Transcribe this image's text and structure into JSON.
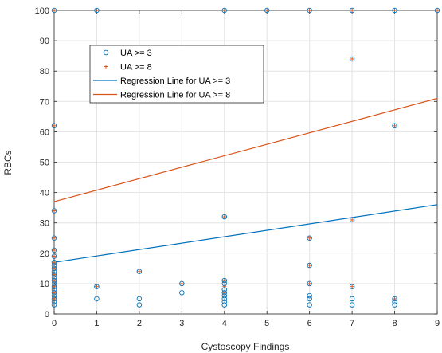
{
  "chart_data": {
    "type": "scatter",
    "title": "",
    "xlabel": "Cystoscopy Findings",
    "ylabel": "RBCs",
    "xlim": [
      0,
      9
    ],
    "ylim": [
      0,
      100
    ],
    "xticks": [
      "0",
      "1",
      "2",
      "3",
      "4",
      "5",
      "6",
      "7",
      "8",
      "9"
    ],
    "yticks": [
      "0",
      "10",
      "20",
      "30",
      "40",
      "50",
      "60",
      "70",
      "80",
      "90",
      "100"
    ],
    "grid": true,
    "legend_position": "upper-left",
    "series": [
      {
        "name": "UA >= 3",
        "kind": "scatter",
        "marker": "circle",
        "color": "#0072BD",
        "points": [
          [
            0,
            100
          ],
          [
            0,
            62
          ],
          [
            0,
            34
          ],
          [
            0,
            25
          ],
          [
            0,
            21
          ],
          [
            0,
            19
          ],
          [
            0,
            17
          ],
          [
            0,
            16
          ],
          [
            0,
            15
          ],
          [
            0,
            14
          ],
          [
            0,
            13
          ],
          [
            0,
            12
          ],
          [
            0,
            11
          ],
          [
            0,
            10
          ],
          [
            0,
            9
          ],
          [
            0,
            8
          ],
          [
            0,
            7
          ],
          [
            0,
            6
          ],
          [
            0,
            5
          ],
          [
            0,
            4
          ],
          [
            0,
            3
          ],
          [
            1,
            100
          ],
          [
            1,
            9
          ],
          [
            1,
            5
          ],
          [
            2,
            14
          ],
          [
            2,
            5
          ],
          [
            2,
            3
          ],
          [
            3,
            10
          ],
          [
            3,
            7
          ],
          [
            4,
            100
          ],
          [
            4,
            32
          ],
          [
            4,
            11
          ],
          [
            4,
            10
          ],
          [
            4,
            8
          ],
          [
            4,
            7
          ],
          [
            4,
            6
          ],
          [
            4,
            5
          ],
          [
            4,
            4
          ],
          [
            4,
            3
          ],
          [
            5,
            100
          ],
          [
            6,
            100
          ],
          [
            6,
            25
          ],
          [
            6,
            16
          ],
          [
            6,
            10
          ],
          [
            6,
            6
          ],
          [
            6,
            5
          ],
          [
            6,
            3
          ],
          [
            7,
            100
          ],
          [
            7,
            84
          ],
          [
            7,
            31
          ],
          [
            7,
            9
          ],
          [
            7,
            5
          ],
          [
            7,
            3
          ],
          [
            8,
            100
          ],
          [
            8,
            62
          ],
          [
            8,
            5
          ],
          [
            8,
            4
          ],
          [
            8,
            3
          ],
          [
            9,
            100
          ]
        ]
      },
      {
        "name": "UA >= 8",
        "kind": "scatter",
        "marker": "plus",
        "color": "#D95319",
        "points": [
          [
            0,
            100
          ],
          [
            0,
            62
          ],
          [
            0,
            34
          ],
          [
            0,
            25
          ],
          [
            0,
            21
          ],
          [
            0,
            19
          ],
          [
            0,
            17
          ],
          [
            0,
            15
          ],
          [
            0,
            13
          ],
          [
            0,
            11
          ],
          [
            0,
            9
          ],
          [
            0,
            7
          ],
          [
            0,
            5
          ],
          [
            1,
            100
          ],
          [
            1,
            9
          ],
          [
            2,
            14
          ],
          [
            3,
            10
          ],
          [
            4,
            100
          ],
          [
            4,
            32
          ],
          [
            4,
            11
          ],
          [
            4,
            9
          ],
          [
            4,
            7
          ],
          [
            5,
            100
          ],
          [
            6,
            100
          ],
          [
            6,
            25
          ],
          [
            6,
            16
          ],
          [
            6,
            10
          ],
          [
            7,
            100
          ],
          [
            7,
            84
          ],
          [
            7,
            31
          ],
          [
            7,
            9
          ],
          [
            8,
            100
          ],
          [
            8,
            62
          ],
          [
            8,
            5
          ],
          [
            9,
            100
          ]
        ]
      },
      {
        "name": "Regression Line for UA >= 3",
        "kind": "line",
        "color": "#0072BD",
        "x": [
          0,
          9
        ],
        "y": [
          17,
          36
        ]
      },
      {
        "name": "Regression Line for UA >= 8",
        "kind": "line",
        "color": "#D95319",
        "x": [
          0,
          9
        ],
        "y": [
          37,
          71
        ]
      }
    ]
  }
}
